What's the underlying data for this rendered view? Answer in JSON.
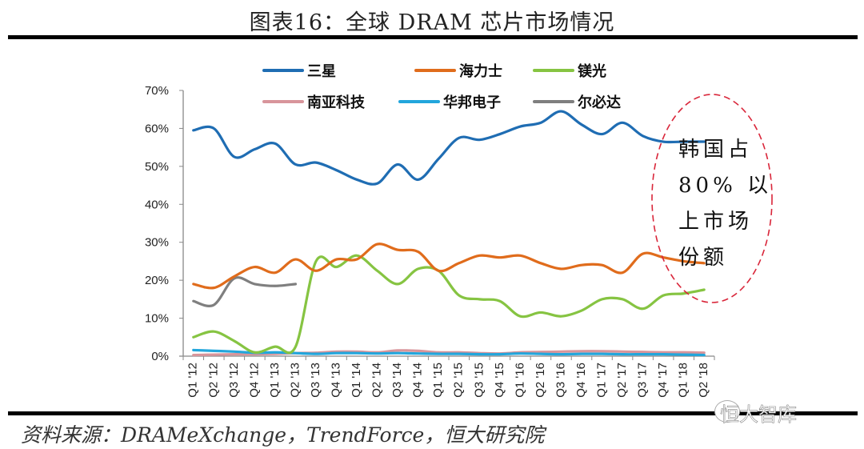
{
  "title": "图表16：全球 DRAM 芯片市场情况",
  "source": "资料来源：DRAMeXchange，TrendForce，恒大研究院",
  "watermark": "恒大智库",
  "chart_data": {
    "type": "line",
    "title": "图表16：全球 DRAM 芯片市场情况",
    "xlabel": "",
    "ylabel": "",
    "ylim": [
      0,
      70
    ],
    "yticks": [
      0,
      10,
      20,
      30,
      40,
      50,
      60,
      70
    ],
    "ytick_labels": [
      "0%",
      "10%",
      "20%",
      "30%",
      "40%",
      "50%",
      "60%",
      "70%"
    ],
    "grid": false,
    "legend_position": "top",
    "x": [
      "Q1 '12",
      "Q2 '12",
      "Q3 '12",
      "Q4 '12",
      "Q1 '13",
      "Q2 '13",
      "Q3 '13",
      "Q4 '13",
      "Q1 '14",
      "Q2 '14",
      "Q3 '14",
      "Q4 '14",
      "Q1 '15",
      "Q2 '15",
      "Q3 '15",
      "Q4 '15",
      "Q1 '16",
      "Q2 '16",
      "Q3 '16",
      "Q4 '16",
      "Q1 '17",
      "Q2 '17",
      "Q3 '17",
      "Q4 '17",
      "Q1 '18",
      "Q2 '18"
    ],
    "series": [
      {
        "name": "三星",
        "color": "#1f6db3",
        "values": [
          59.5,
          60,
          52.5,
          54.5,
          56,
          50.5,
          51,
          49,
          46.5,
          45.5,
          50.5,
          46.5,
          52,
          57.5,
          57,
          58.5,
          60.5,
          61.5,
          64.5,
          61,
          58.5,
          61.5,
          58,
          56.5,
          56.5,
          56.5
        ]
      },
      {
        "name": "海力士",
        "color": "#e06c1c",
        "values": [
          19,
          18,
          21,
          23.5,
          22,
          25.5,
          22.5,
          25.5,
          25.5,
          29.5,
          28,
          27.5,
          22.5,
          24.5,
          26.5,
          26,
          26.5,
          24.5,
          23,
          24,
          24,
          22,
          27,
          26,
          25,
          24.5
        ]
      },
      {
        "name": "镁光",
        "color": "#86c442",
        "values": [
          5,
          6.5,
          4,
          1,
          2.5,
          2.5,
          25,
          23.5,
          26.5,
          22.5,
          19,
          23,
          22.5,
          16,
          15,
          14.5,
          10.5,
          11.5,
          10.5,
          12,
          15,
          15,
          12.5,
          16,
          16.5,
          17.5
        ]
      },
      {
        "name": "南亚科技",
        "color": "#d8959b",
        "values": [
          0.3,
          0.4,
          0.5,
          0.5,
          0.6,
          0.8,
          0.9,
          1.2,
          1.2,
          1.0,
          1.5,
          1.4,
          1.0,
          1.0,
          0.8,
          0.7,
          1.0,
          1.1,
          1.2,
          1.3,
          1.3,
          1.2,
          1.1,
          1.0,
          1.0,
          0.9
        ]
      },
      {
        "name": "华邦电子",
        "color": "#22a6dc",
        "values": [
          1.6,
          1.4,
          1.2,
          0.9,
          1.0,
          0.8,
          0.6,
          0.8,
          0.8,
          0.7,
          0.8,
          0.7,
          0.6,
          0.6,
          0.5,
          0.5,
          0.7,
          0.6,
          0.5,
          0.6,
          0.6,
          0.5,
          0.5,
          0.5,
          0.4,
          0.3
        ]
      },
      {
        "name": "尔必达",
        "color": "#7f7f7f",
        "values": [
          14.5,
          13.5,
          20.5,
          19,
          18.5,
          19,
          null,
          null,
          null,
          null,
          null,
          null,
          null,
          null,
          null,
          null,
          null,
          null,
          null,
          null,
          null,
          null,
          null,
          null,
          null,
          null
        ]
      }
    ],
    "annotations": [
      {
        "text_lines": [
          "韩国占",
          "80% 以",
          "上市场",
          "份额"
        ],
        "style": "red dashed ellipse",
        "color": "#d9263a",
        "position": "right"
      }
    ]
  }
}
